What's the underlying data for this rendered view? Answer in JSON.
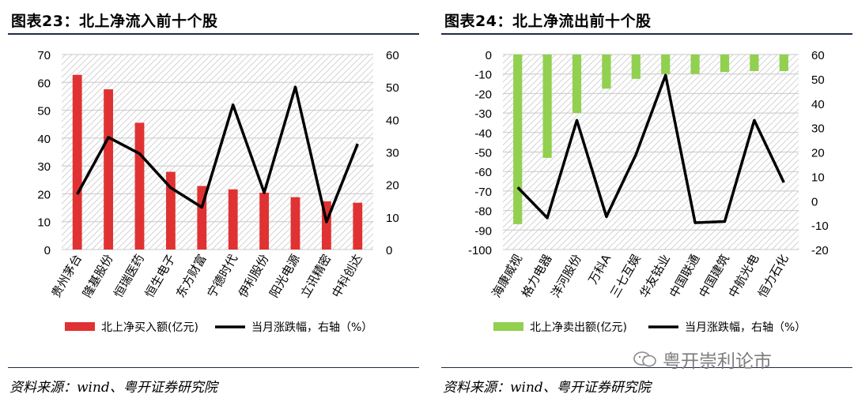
{
  "charts": [
    {
      "title": "图表23：北上净流入前十个股",
      "source": "资料来源：wind、粤开证券研究院",
      "chart_data": {
        "type": "bar+line",
        "categories": [
          "贵州茅台",
          "隆基股份",
          "恒瑞医药",
          "恒生电子",
          "东方财富",
          "宁德时代",
          "伊利股份",
          "阳光电源",
          "立讯精密",
          "中科创达"
        ],
        "bar_series": {
          "name": "北上净买入额(亿元)",
          "values": [
            62.7,
            57.5,
            45.5,
            27.9,
            22.8,
            21.6,
            20.4,
            18.8,
            17.3,
            16.8
          ],
          "color": "#e03232"
        },
        "line_series": {
          "name": "当月涨跌幅，右轴（%）",
          "values": [
            17,
            34.5,
            29.5,
            19,
            13,
            44.5,
            17.5,
            50,
            8.5,
            32.5
          ],
          "color": "#000000"
        },
        "y_left": {
          "min": 0,
          "max": 70,
          "ticks": [
            0,
            10,
            20,
            30,
            40,
            50,
            60,
            70
          ]
        },
        "y_right": {
          "min": 0,
          "max": 60,
          "ticks": [
            0,
            10,
            20,
            30,
            40,
            50,
            60
          ]
        },
        "legend_position": "bottom"
      }
    },
    {
      "title": "图表24：北上净流出前十个股",
      "source": "资料来源：wind、粤开证券研究院",
      "chart_data": {
        "type": "bar+line",
        "categories": [
          "海康威视",
          "格力电器",
          "洋河股份",
          "万科A",
          "三七互娱",
          "华友钴业",
          "中国联通",
          "中国建筑",
          "中航光电",
          "恒力石化"
        ],
        "bar_series": {
          "name": "北上净卖出额(亿元)",
          "values": [
            -87,
            -53,
            -30,
            -17.5,
            -12.5,
            -10,
            -10,
            -9,
            -8.5,
            -8.5
          ],
          "color": "#92d050"
        },
        "line_series": {
          "name": "当月涨跌幅，右轴（%）",
          "values": [
            5.5,
            -7,
            33,
            -6.5,
            19,
            51.5,
            -9,
            -8.5,
            33,
            7.5
          ],
          "color": "#000000"
        },
        "y_left": {
          "min": -100,
          "max": 0,
          "ticks": [
            -100,
            -90,
            -80,
            -70,
            -60,
            -50,
            -40,
            -30,
            -20,
            -10,
            0
          ]
        },
        "y_right": {
          "min": -20,
          "max": 60,
          "ticks": [
            -20,
            -10,
            0,
            10,
            20,
            30,
            40,
            50,
            60
          ]
        },
        "legend_position": "bottom"
      }
    }
  ],
  "watermark": "粤开崇利论市"
}
